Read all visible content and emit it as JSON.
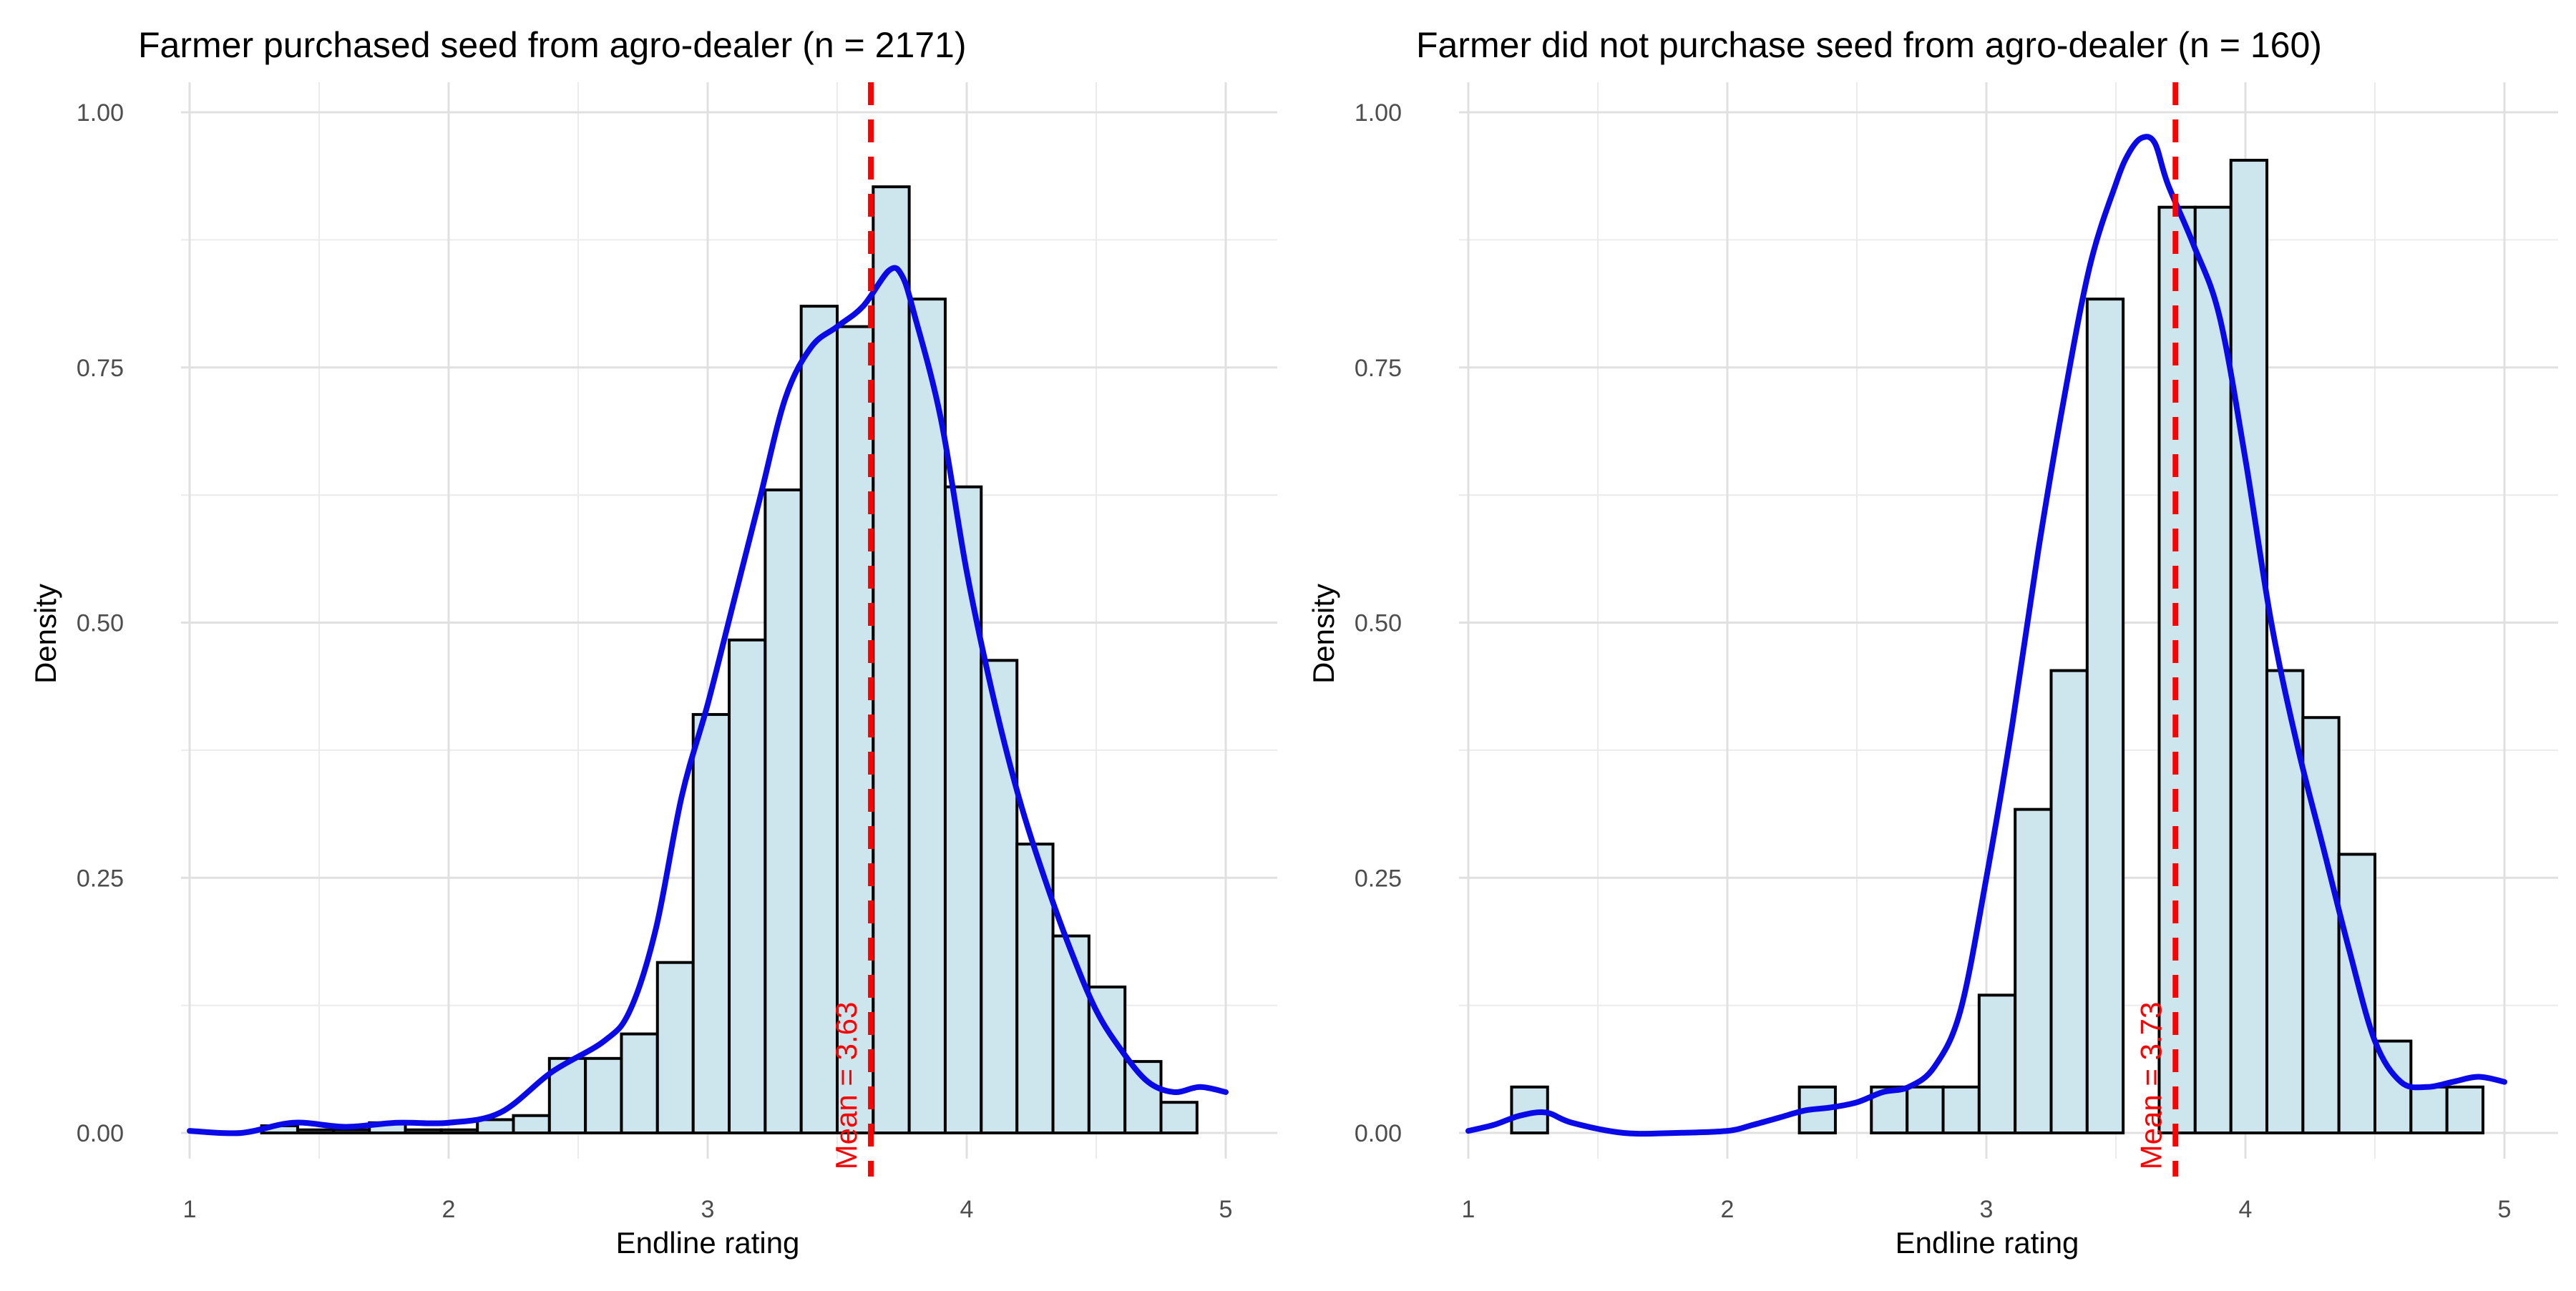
{
  "chart_data": [
    {
      "type": "histogram",
      "title": "Farmer purchased seed from agro-dealer (n = 2171)",
      "xlabel": "Endline rating",
      "ylabel": "Density",
      "xlim": [
        1,
        5
      ],
      "ylim": [
        0,
        1.0
      ],
      "x_ticks": [
        1,
        2,
        3,
        4,
        5
      ],
      "x_tick_labels": [
        "1",
        "2",
        "3",
        "4",
        "5"
      ],
      "y_ticks": [
        0,
        0.25,
        0.5,
        0.75,
        1.0
      ],
      "y_tick_labels": [
        "0.00",
        "0.25",
        "0.50",
        "0.75",
        "1.00"
      ],
      "grid": true,
      "bin_width": 0.1389,
      "bins": [
        {
          "x0": 1.278,
          "x1": 1.417,
          "density": 0.007
        },
        {
          "x0": 1.417,
          "x1": 1.556,
          "density": 0.003
        },
        {
          "x0": 1.556,
          "x1": 1.694,
          "density": 0.003
        },
        {
          "x0": 1.694,
          "x1": 1.833,
          "density": 0.01
        },
        {
          "x0": 1.833,
          "x1": 1.972,
          "density": 0.003
        },
        {
          "x0": 1.972,
          "x1": 2.111,
          "density": 0.003
        },
        {
          "x0": 2.111,
          "x1": 2.25,
          "density": 0.013
        },
        {
          "x0": 2.25,
          "x1": 2.389,
          "density": 0.017
        },
        {
          "x0": 2.389,
          "x1": 2.528,
          "density": 0.073
        },
        {
          "x0": 2.528,
          "x1": 2.667,
          "density": 0.073
        },
        {
          "x0": 2.667,
          "x1": 2.806,
          "density": 0.097
        },
        {
          "x0": 2.806,
          "x1": 2.944,
          "density": 0.167
        },
        {
          "x0": 2.944,
          "x1": 3.083,
          "density": 0.41
        },
        {
          "x0": 3.083,
          "x1": 3.222,
          "density": 0.483
        },
        {
          "x0": 3.222,
          "x1": 3.361,
          "density": 0.63
        },
        {
          "x0": 3.361,
          "x1": 3.5,
          "density": 0.81
        },
        {
          "x0": 3.5,
          "x1": 3.639,
          "density": 0.79
        },
        {
          "x0": 3.639,
          "x1": 3.778,
          "density": 0.927
        },
        {
          "x0": 3.778,
          "x1": 3.917,
          "density": 0.817
        },
        {
          "x0": 3.917,
          "x1": 4.056,
          "density": 0.633
        },
        {
          "x0": 4.056,
          "x1": 4.194,
          "density": 0.463
        },
        {
          "x0": 4.194,
          "x1": 4.333,
          "density": 0.283
        },
        {
          "x0": 4.333,
          "x1": 4.472,
          "density": 0.193
        },
        {
          "x0": 4.472,
          "x1": 4.611,
          "density": 0.143
        },
        {
          "x0": 4.611,
          "x1": 4.75,
          "density": 0.07
        },
        {
          "x0": 4.75,
          "x1": 4.889,
          "density": 0.03
        }
      ],
      "density_curve": {
        "x": [
          1.0,
          1.2,
          1.4,
          1.6,
          1.8,
          2.0,
          2.2,
          2.4,
          2.6,
          2.7,
          2.8,
          2.9,
          3.0,
          3.1,
          3.2,
          3.3,
          3.4,
          3.5,
          3.6,
          3.7,
          3.75,
          3.8,
          3.9,
          4.0,
          4.1,
          4.2,
          4.3,
          4.4,
          4.5,
          4.6,
          4.7,
          4.8,
          4.9,
          5.0
        ],
        "y": [
          0.002,
          0.0,
          0.01,
          0.006,
          0.01,
          0.01,
          0.02,
          0.06,
          0.09,
          0.12,
          0.2,
          0.33,
          0.42,
          0.52,
          0.62,
          0.72,
          0.77,
          0.79,
          0.81,
          0.845,
          0.84,
          0.8,
          0.7,
          0.55,
          0.43,
          0.33,
          0.25,
          0.18,
          0.12,
          0.08,
          0.05,
          0.04,
          0.045,
          0.04
        ]
      },
      "mean": 3.63,
      "mean_label": "Mean = 3.63",
      "colors": {
        "bar_fill": "#cde6ee",
        "bar_stroke": "#000000",
        "curve": "#0a0ae8",
        "mean_line": "#ff0000"
      }
    },
    {
      "type": "histogram",
      "title": "Farmer did not purchase seed from agro-dealer (n = 160)",
      "xlabel": "Endline rating",
      "ylabel": "Density",
      "xlim": [
        1,
        5
      ],
      "ylim": [
        0,
        1.0
      ],
      "x_ticks": [
        1,
        2,
        3,
        4,
        5
      ],
      "x_tick_labels": [
        "1",
        "2",
        "3",
        "4",
        "5"
      ],
      "y_ticks": [
        0,
        0.25,
        0.5,
        0.75,
        1.0
      ],
      "y_tick_labels": [
        "0.00",
        "0.25",
        "0.50",
        "0.75",
        "1.00"
      ],
      "grid": true,
      "bin_width": 0.1389,
      "bins": [
        {
          "x0": 1.167,
          "x1": 1.306,
          "density": 0.045
        },
        {
          "x0": 2.278,
          "x1": 2.417,
          "density": 0.045
        },
        {
          "x0": 2.417,
          "x1": 2.556,
          "density": 0.0
        },
        {
          "x0": 2.556,
          "x1": 2.694,
          "density": 0.045
        },
        {
          "x0": 2.694,
          "x1": 2.833,
          "density": 0.045
        },
        {
          "x0": 2.833,
          "x1": 2.972,
          "density": 0.045
        },
        {
          "x0": 2.972,
          "x1": 3.111,
          "density": 0.135
        },
        {
          "x0": 3.111,
          "x1": 3.25,
          "density": 0.317
        },
        {
          "x0": 3.25,
          "x1": 3.389,
          "density": 0.453
        },
        {
          "x0": 3.389,
          "x1": 3.528,
          "density": 0.817
        },
        {
          "x0": 3.528,
          "x1": 3.667,
          "density": 0.0
        },
        {
          "x0": 3.667,
          "x1": 3.806,
          "density": 0.907
        },
        {
          "x0": 3.806,
          "x1": 3.944,
          "density": 0.907
        },
        {
          "x0": 3.944,
          "x1": 4.083,
          "density": 0.953
        },
        {
          "x0": 4.083,
          "x1": 4.222,
          "density": 0.453
        },
        {
          "x0": 4.222,
          "x1": 4.361,
          "density": 0.407
        },
        {
          "x0": 4.361,
          "x1": 4.5,
          "density": 0.273
        },
        {
          "x0": 4.5,
          "x1": 4.639,
          "density": 0.09
        },
        {
          "x0": 4.639,
          "x1": 4.778,
          "density": 0.045
        },
        {
          "x0": 4.778,
          "x1": 4.917,
          "density": 0.045
        }
      ],
      "density_curve": {
        "x": [
          1.0,
          1.1,
          1.2,
          1.3,
          1.4,
          1.6,
          1.8,
          2.0,
          2.1,
          2.2,
          2.3,
          2.4,
          2.5,
          2.6,
          2.7,
          2.8,
          2.9,
          3.0,
          3.1,
          3.2,
          3.3,
          3.4,
          3.5,
          3.55,
          3.6,
          3.65,
          3.7,
          3.8,
          3.9,
          4.0,
          4.1,
          4.2,
          4.3,
          4.4,
          4.5,
          4.6,
          4.7,
          4.8,
          4.9,
          5.0
        ],
        "y": [
          0.002,
          0.008,
          0.017,
          0.02,
          0.01,
          0.0,
          0.0,
          0.002,
          0.008,
          0.015,
          0.022,
          0.025,
          0.03,
          0.04,
          0.045,
          0.065,
          0.12,
          0.25,
          0.4,
          0.57,
          0.72,
          0.85,
          0.93,
          0.96,
          0.975,
          0.97,
          0.93,
          0.87,
          0.8,
          0.66,
          0.5,
          0.38,
          0.28,
          0.18,
          0.09,
          0.05,
          0.045,
          0.05,
          0.055,
          0.05
        ]
      },
      "mean": 3.73,
      "mean_label": "Mean = 3.73",
      "colors": {
        "bar_fill": "#cde6ee",
        "bar_stroke": "#000000",
        "curve": "#0a0ae8",
        "mean_line": "#ff0000"
      }
    }
  ]
}
